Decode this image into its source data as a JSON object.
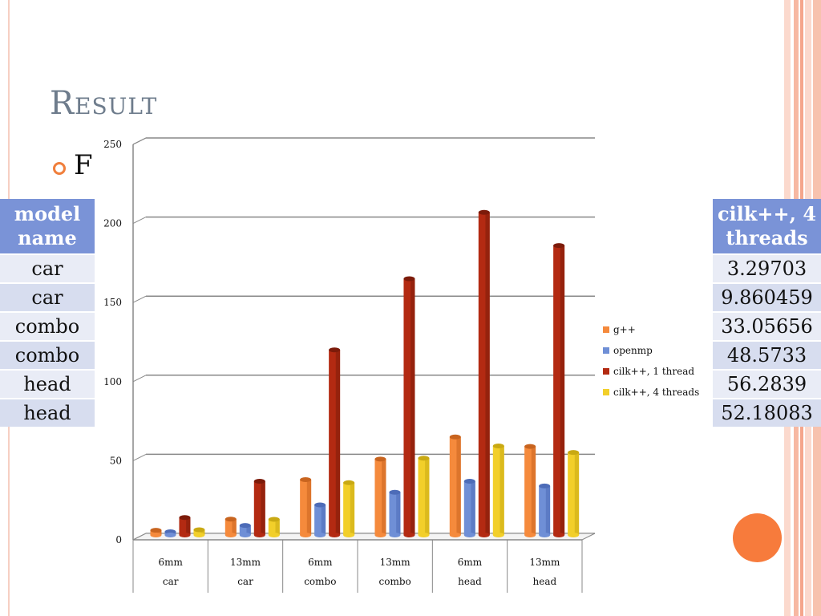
{
  "slide": {
    "title": "Result",
    "bullet": "F"
  },
  "table_left": {
    "header": "model name",
    "rows": [
      "car",
      "car",
      "combo",
      "combo",
      "head",
      "head"
    ]
  },
  "table_right": {
    "header": "cilk++, 4 threads",
    "rows": [
      "3.29703",
      "9.860459",
      "33.05656",
      "48.5733",
      "56.2839",
      "52.18083"
    ]
  },
  "colors": {
    "accent": "#f07f3c",
    "header_bg": "#7a93d7",
    "g++": "#f58a3c",
    "openmp": "#6f8fd6",
    "cilk1": "#b32a12",
    "cilk4": "#f2cf2a"
  },
  "chart_data": {
    "type": "bar",
    "categories": [
      "6mm",
      "13mm",
      "6mm",
      "13mm",
      "6mm",
      "13mm"
    ],
    "groups": [
      "car",
      "car",
      "combo",
      "combo",
      "head",
      "head"
    ],
    "series": [
      {
        "name": "g++",
        "values": [
          3,
          10,
          35,
          48,
          62,
          56
        ]
      },
      {
        "name": "openmp",
        "values": [
          2,
          6,
          19,
          27,
          34,
          31
        ]
      },
      {
        "name": "cilk++, 1 thread",
        "values": [
          11,
          34,
          117,
          162,
          204,
          183
        ]
      },
      {
        "name": "cilk++, 4 threads",
        "values": [
          3.29703,
          9.860459,
          33.05656,
          48.5733,
          56.2839,
          52.18083
        ]
      }
    ],
    "ylim": [
      0,
      250
    ],
    "yticks": [
      "0",
      "50",
      "100",
      "150",
      "200",
      "250"
    ],
    "grid": true,
    "legend": "right"
  }
}
